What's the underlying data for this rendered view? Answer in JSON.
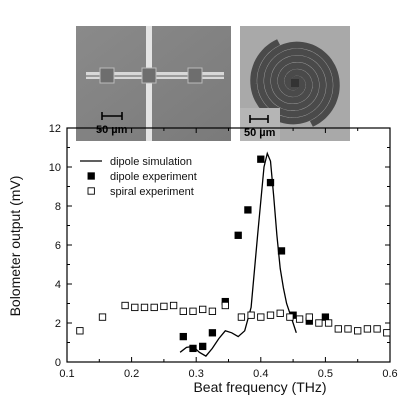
{
  "insets": {
    "dipole_scale_label": "50 µm",
    "spiral_scale_label": "50 µm"
  },
  "chart_data": {
    "type": "line+scatter",
    "xlabel": "Beat frequency (THz)",
    "ylabel": "Bolometer output (mV)",
    "xlim": [
      0.1,
      0.6
    ],
    "ylim": [
      0,
      12
    ],
    "xticks": [
      "0.1",
      "0.2",
      "0.3",
      "0.4",
      "0.5",
      "0.6"
    ],
    "yticks": [
      "0",
      "2",
      "4",
      "6",
      "8",
      "10",
      "12"
    ],
    "legend_position": "upper-left",
    "series": [
      {
        "name": "dipole simulation",
        "style": "line",
        "color": "#000000",
        "x": [
          0.275,
          0.285,
          0.295,
          0.305,
          0.315,
          0.325,
          0.335,
          0.345,
          0.355,
          0.365,
          0.375,
          0.385,
          0.395,
          0.405,
          0.41,
          0.415,
          0.42,
          0.425,
          0.43,
          0.435,
          0.44,
          0.445,
          0.45,
          0.455
        ],
        "y": [
          0.5,
          0.75,
          0.8,
          0.5,
          0.3,
          0.7,
          1.2,
          1.6,
          1.5,
          1.3,
          1.6,
          2.8,
          6.5,
          10.0,
          10.7,
          10.3,
          8.5,
          6.5,
          4.8,
          3.8,
          3.0,
          2.5,
          2.0,
          1.5
        ]
      },
      {
        "name": "dipole experiment",
        "style": "filled-square",
        "color": "#000000",
        "x": [
          0.28,
          0.295,
          0.31,
          0.325,
          0.345,
          0.365,
          0.38,
          0.4,
          0.415,
          0.432,
          0.45,
          0.475,
          0.5
        ],
        "y": [
          1.3,
          0.7,
          0.8,
          1.5,
          3.1,
          6.5,
          7.8,
          10.4,
          9.2,
          5.7,
          2.4,
          2.1,
          2.3
        ]
      },
      {
        "name": "spiral experiment",
        "style": "open-square",
        "color": "#000000",
        "x": [
          0.12,
          0.155,
          0.19,
          0.205,
          0.22,
          0.235,
          0.25,
          0.265,
          0.28,
          0.295,
          0.31,
          0.325,
          0.345,
          0.37,
          0.385,
          0.4,
          0.415,
          0.43,
          0.445,
          0.46,
          0.475,
          0.49,
          0.505,
          0.52,
          0.535,
          0.55,
          0.565,
          0.58,
          0.595
        ],
        "y": [
          1.6,
          2.3,
          2.9,
          2.8,
          2.8,
          2.8,
          2.85,
          2.9,
          2.6,
          2.6,
          2.7,
          2.6,
          2.9,
          2.3,
          2.4,
          2.3,
          2.4,
          2.5,
          2.3,
          2.2,
          2.3,
          2.0,
          2.0,
          1.7,
          1.7,
          1.6,
          1.7,
          1.7,
          1.5
        ]
      }
    ]
  }
}
